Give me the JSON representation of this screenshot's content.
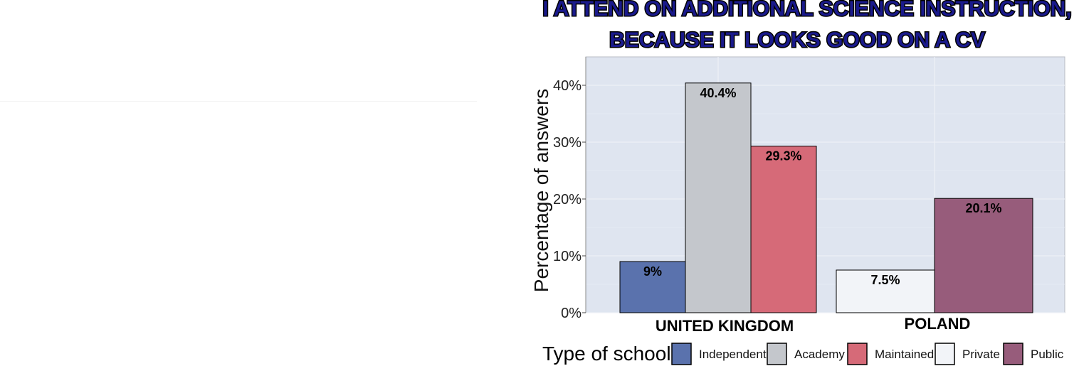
{
  "chart_data": {
    "type": "bar",
    "title_lines": [
      "I ATTEND ON ADDITIONAL SCIENCE INSTRUCTION,",
      "BECAUSE IT LOOKS GOOD ON A CV"
    ],
    "ylabel": "Percentage of answers",
    "xlabel": "",
    "ylim": [
      0,
      45
    ],
    "yticks": [
      0,
      10,
      20,
      30,
      40
    ],
    "ytick_labels": [
      "0%",
      "10%",
      "20%",
      "30%",
      "40%"
    ],
    "grid": true,
    "legend_position": "bottom",
    "legend_title": "Type of school",
    "legend": [
      {
        "name": "Independent",
        "color": "#5a72ad"
      },
      {
        "name": "Academy",
        "color": "#c4c7cc"
      },
      {
        "name": "Maintained",
        "color": "#d66a78"
      },
      {
        "name": "Private",
        "color": "#f2f4f8"
      },
      {
        "name": "Public",
        "color": "#975c7b"
      }
    ],
    "groups": [
      {
        "category": "UNITED KINGDOM",
        "bars": [
          {
            "series": "Independent",
            "value": 9,
            "label": "9%"
          },
          {
            "series": "Academy",
            "value": 40.4,
            "label": "40.4%"
          },
          {
            "series": "Maintained",
            "value": 29.3,
            "label": "29.3%"
          }
        ]
      },
      {
        "category": "POLAND",
        "bars": [
          {
            "series": "Private",
            "value": 7.5,
            "label": "7.5%"
          },
          {
            "series": "Public",
            "value": 20.1,
            "label": "20.1%"
          }
        ]
      }
    ],
    "panel_background": "#dfe5f0",
    "bar_outline": "#000000"
  }
}
